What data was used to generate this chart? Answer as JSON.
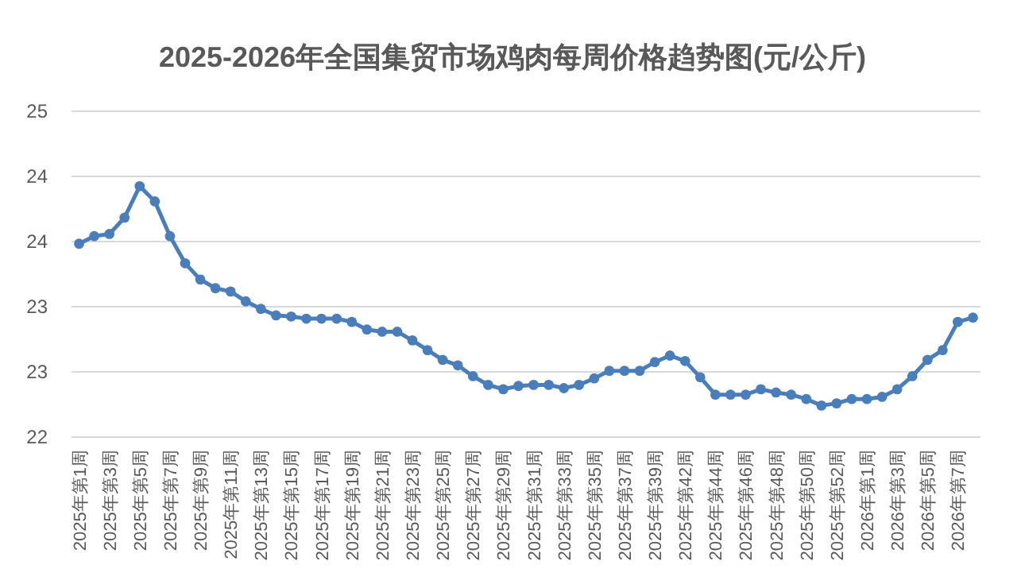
{
  "chart_data": {
    "type": "line",
    "title": "2025-2026年全国集贸市场鸡肉每周价格趋势图(元/公斤)",
    "categories": [
      "2025年第1周",
      null,
      "2025年第3周",
      null,
      "2025年第5周",
      null,
      "2025年第7周",
      null,
      "2025年第9周",
      null,
      "2025年第11周",
      null,
      "2025年第13周",
      null,
      "2025年第15周",
      null,
      "2025年第17周",
      null,
      "2025年第19周",
      null,
      "2025年第21周",
      null,
      "2025年第23周",
      null,
      "2025年第25周",
      null,
      "2025年第27周",
      null,
      "2025年第29周",
      null,
      "2025年第31周",
      null,
      "2025年第33周",
      null,
      "2025年第35周",
      null,
      "2025年第37周",
      null,
      "2025年第39周",
      null,
      "2025年第42周",
      null,
      "2025年第44周",
      null,
      "2025年第46周",
      null,
      "2025年第48周",
      null,
      "2025年第50周",
      null,
      "2025年第52周",
      null,
      "2026年第1周",
      null,
      "2026年第3周",
      null,
      "2026年第5周",
      null,
      "2026年第7周",
      null
    ],
    "series": [
      {
        "color": "#4a7ebb",
        "values": [
          23.78,
          23.85,
          23.87,
          24.02,
          24.31,
          24.17,
          23.85,
          23.6,
          23.45,
          23.37,
          23.34,
          23.25,
          23.18,
          23.12,
          23.11,
          23.09,
          23.09,
          23.09,
          23.06,
          22.99,
          22.97,
          22.97,
          22.89,
          22.8,
          22.71,
          22.66,
          22.56,
          22.48,
          22.44,
          22.47,
          22.48,
          22.48,
          22.45,
          22.48,
          22.54,
          22.61,
          22.61,
          22.61,
          22.69,
          22.75,
          22.7,
          22.55,
          22.39,
          22.39,
          22.39,
          22.44,
          22.41,
          22.39,
          22.35,
          22.29,
          22.31,
          22.35,
          22.35,
          22.37,
          22.44,
          22.56,
          22.71,
          22.8,
          23.06,
          23.1
        ]
      }
    ],
    "ylim": [
      22,
      25
    ],
    "yticks": [
      {
        "value": 22,
        "label": "22"
      },
      {
        "value": 22.6,
        "label": "23"
      },
      {
        "value": 23.2,
        "label": "23"
      },
      {
        "value": 23.8,
        "label": "24"
      },
      {
        "value": 24.4,
        "label": "24"
      },
      {
        "value": 25,
        "label": "25"
      }
    ],
    "grid": "y",
    "marker": "circle"
  }
}
